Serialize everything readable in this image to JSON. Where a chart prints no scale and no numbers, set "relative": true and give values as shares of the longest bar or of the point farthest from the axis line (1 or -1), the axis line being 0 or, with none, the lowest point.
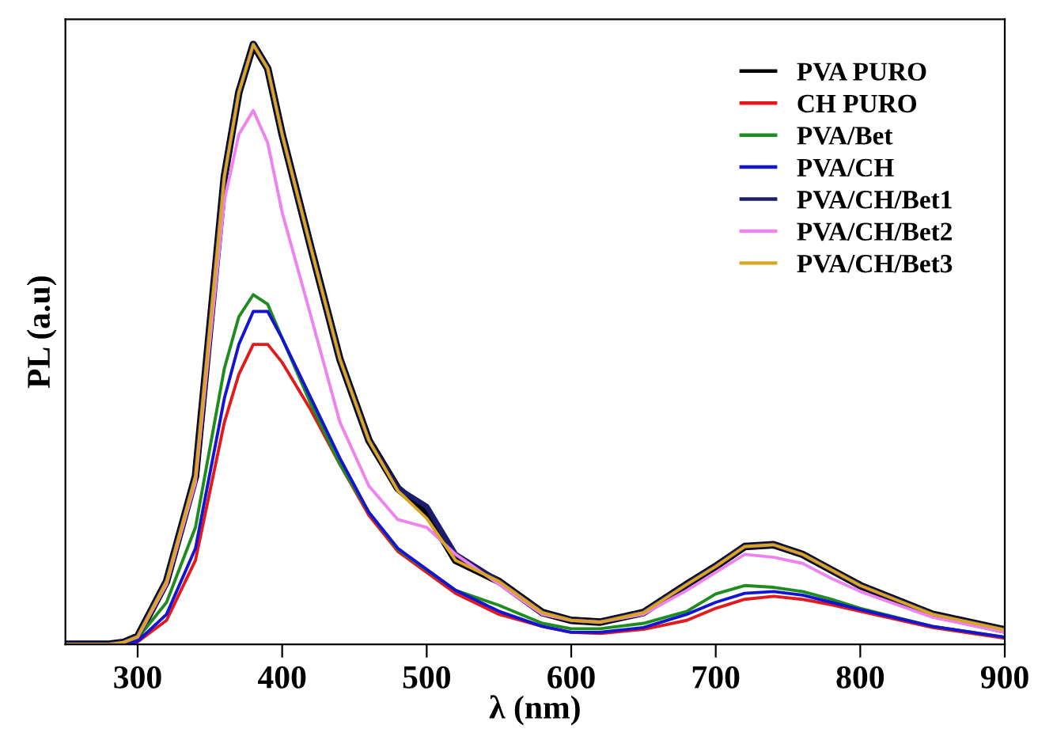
{
  "chart_data": {
    "type": "line",
    "xlabel": "λ (nm)",
    "ylabel": "PL (a.u)",
    "relative": true,
    "x": [
      250,
      280,
      290,
      300,
      320,
      340,
      360,
      370,
      380,
      390,
      400,
      420,
      440,
      460,
      480,
      500,
      520,
      550,
      580,
      600,
      620,
      650,
      680,
      700,
      720,
      740,
      760,
      780,
      800,
      850,
      900
    ],
    "xlim": [
      250,
      900
    ],
    "xticks": [
      300,
      400,
      500,
      600,
      700,
      800,
      900
    ],
    "tick_labels": "x",
    "legend": "top right",
    "grid": false,
    "line_style": "solid",
    "series": [
      {
        "name": "PVA PURO",
        "color": "#000000",
        "values": [
          0,
          0,
          0.003,
          0.013,
          0.105,
          0.28,
          0.78,
          0.92,
          1.0,
          0.96,
          0.85,
          0.66,
          0.475,
          0.34,
          0.26,
          0.22,
          0.14,
          0.105,
          0.053,
          0.04,
          0.037,
          0.053,
          0.1,
          0.13,
          0.163,
          0.166,
          0.15,
          0.124,
          0.098,
          0.05,
          0.024
        ]
      },
      {
        "name": "CH PURO",
        "color": "#e31a1c",
        "values": [
          0,
          0,
          0,
          0.004,
          0.04,
          0.14,
          0.37,
          0.45,
          0.5,
          0.5,
          0.47,
          0.39,
          0.3,
          0.215,
          0.155,
          0.12,
          0.085,
          0.05,
          0.03,
          0.02,
          0.018,
          0.025,
          0.04,
          0.06,
          0.075,
          0.08,
          0.075,
          0.066,
          0.055,
          0.028,
          0.01
        ]
      },
      {
        "name": "PVA/Bet",
        "color": "#1e8c1e",
        "values": [
          null,
          null,
          0.001,
          0.01,
          0.07,
          0.195,
          0.46,
          0.546,
          0.583,
          0.567,
          0.51,
          0.4,
          0.3,
          0.22,
          0.158,
          0.124,
          0.09,
          0.065,
          0.035,
          0.026,
          0.026,
          0.035,
          0.055,
          0.084,
          0.098,
          0.095,
          0.088,
          0.075,
          0.06,
          0.03,
          0.012
        ]
      },
      {
        "name": "PVA/CH",
        "color": "#1414d2",
        "values": [
          0,
          0,
          0,
          0.005,
          0.05,
          0.16,
          0.41,
          0.5,
          0.555,
          0.555,
          0.51,
          0.41,
          0.31,
          0.22,
          0.16,
          0.125,
          0.09,
          0.055,
          0.03,
          0.02,
          0.02,
          0.028,
          0.05,
          0.07,
          0.085,
          0.088,
          0.082,
          0.07,
          0.058,
          0.03,
          0.012
        ]
      },
      {
        "name": "PVA/CH/Bet1",
        "color": "#1c1c6e",
        "values": [
          0,
          0,
          0.003,
          0.013,
          0.105,
          0.28,
          0.78,
          0.92,
          1.0,
          0.96,
          0.85,
          0.66,
          0.475,
          0.34,
          0.26,
          0.23,
          0.15,
          0.105,
          0.053,
          0.04,
          0.037,
          0.053,
          0.1,
          0.13,
          0.163,
          0.166,
          0.15,
          0.124,
          0.098,
          0.05,
          0.024
        ]
      },
      {
        "name": "PVA/CH/Bet2",
        "color": "#ee82ee",
        "values": [
          null,
          null,
          0.003,
          0.012,
          0.1,
          0.27,
          0.74,
          0.85,
          0.89,
          0.836,
          0.72,
          0.546,
          0.37,
          0.264,
          0.208,
          0.195,
          0.15,
          0.1,
          0.05,
          0.04,
          0.037,
          0.05,
          0.09,
          0.12,
          0.15,
          0.145,
          0.135,
          0.11,
          0.088,
          0.045,
          0.02
        ]
      },
      {
        "name": "PVA/CH/Bet3",
        "color": "#daa520",
        "values": [
          0,
          0,
          0.003,
          0.013,
          0.105,
          0.28,
          0.78,
          0.92,
          1.0,
          0.96,
          0.85,
          0.66,
          0.475,
          0.34,
          0.256,
          0.21,
          0.14,
          0.105,
          0.053,
          0.04,
          0.037,
          0.053,
          0.1,
          0.13,
          0.163,
          0.166,
          0.15,
          0.124,
          0.098,
          0.05,
          0.024
        ]
      }
    ]
  }
}
